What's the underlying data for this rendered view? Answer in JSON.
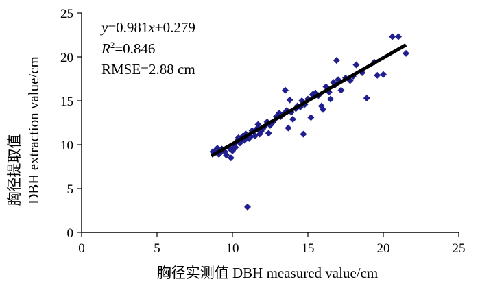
{
  "chart_data": {
    "type": "scatter",
    "xlabel": "胸径实测值 DBH measured value/cm",
    "ylabel_zh": "胸径提取值",
    "ylabel_en": "DBH extraction value/cm",
    "xlim": [
      0,
      25
    ],
    "ylim": [
      0,
      25
    ],
    "xticks": [
      0,
      5,
      10,
      15,
      20,
      25
    ],
    "yticks": [
      0,
      5,
      10,
      15,
      20,
      25
    ],
    "x_tick_labels": [
      "0",
      "5",
      "10",
      "15",
      "20",
      "25"
    ],
    "y_tick_labels": [
      "0",
      "5",
      "10",
      "15",
      "20",
      "25"
    ],
    "grid": false,
    "marker_color": "#1f1f8f",
    "fit_line_color": "#000000",
    "annotations": {
      "equation_var_y": "y",
      "equation_mid": "=0.981",
      "equation_var_x": "x",
      "equation_tail": "+0.279",
      "r2_var": "R",
      "r2_sup": "2",
      "r2_value": "=0.846",
      "rmse": "RMSE=2.88 cm"
    },
    "fit": {
      "slope": 0.981,
      "intercept": 0.279,
      "x_range": [
        8.6,
        21.5
      ]
    },
    "points": [
      [
        8.7,
        9.2
      ],
      [
        8.9,
        9.4
      ],
      [
        9.0,
        9.6
      ],
      [
        9.1,
        8.9
      ],
      [
        9.2,
        9.1
      ],
      [
        9.3,
        9.5
      ],
      [
        9.5,
        9.2
      ],
      [
        9.6,
        8.8
      ],
      [
        9.8,
        9.6
      ],
      [
        9.9,
        8.5
      ],
      [
        10.0,
        9.3
      ],
      [
        10.1,
        10.0
      ],
      [
        10.2,
        9.7
      ],
      [
        10.3,
        10.4
      ],
      [
        10.4,
        10.8
      ],
      [
        10.5,
        10.2
      ],
      [
        10.6,
        10.6
      ],
      [
        10.7,
        11.0
      ],
      [
        10.8,
        10.5
      ],
      [
        10.9,
        11.2
      ],
      [
        11.0,
        2.9
      ],
      [
        11.1,
        10.7
      ],
      [
        11.2,
        10.9
      ],
      [
        11.3,
        11.6
      ],
      [
        11.5,
        11.0
      ],
      [
        11.6,
        11.8
      ],
      [
        11.7,
        12.3
      ],
      [
        11.8,
        11.2
      ],
      [
        11.9,
        11.5
      ],
      [
        12.0,
        11.8
      ],
      [
        12.1,
        12.0
      ],
      [
        12.3,
        12.6
      ],
      [
        12.4,
        11.3
      ],
      [
        12.5,
        12.2
      ],
      [
        12.7,
        12.6
      ],
      [
        12.9,
        13.2
      ],
      [
        13.1,
        13.6
      ],
      [
        13.2,
        13.2
      ],
      [
        13.4,
        13.5
      ],
      [
        13.5,
        16.2
      ],
      [
        13.6,
        13.9
      ],
      [
        13.7,
        11.9
      ],
      [
        13.8,
        15.1
      ],
      [
        13.9,
        13.7
      ],
      [
        14.0,
        12.9
      ],
      [
        14.2,
        14.1
      ],
      [
        14.3,
        14.4
      ],
      [
        14.5,
        14.3
      ],
      [
        14.6,
        15.0
      ],
      [
        14.7,
        11.2
      ],
      [
        14.8,
        14.6
      ],
      [
        15.0,
        15.2
      ],
      [
        15.2,
        13.1
      ],
      [
        15.3,
        15.7
      ],
      [
        15.5,
        15.9
      ],
      [
        15.7,
        15.6
      ],
      [
        15.9,
        14.4
      ],
      [
        16.0,
        14.0
      ],
      [
        16.2,
        16.6
      ],
      [
        16.4,
        16.0
      ],
      [
        16.5,
        15.2
      ],
      [
        16.7,
        17.1
      ],
      [
        16.8,
        16.8
      ],
      [
        16.9,
        19.6
      ],
      [
        17.0,
        17.4
      ],
      [
        17.2,
        16.2
      ],
      [
        17.5,
        17.6
      ],
      [
        17.8,
        17.3
      ],
      [
        18.0,
        17.8
      ],
      [
        18.2,
        19.1
      ],
      [
        18.6,
        18.2
      ],
      [
        18.9,
        15.3
      ],
      [
        19.4,
        19.4
      ],
      [
        19.6,
        17.9
      ],
      [
        20.0,
        18.0
      ],
      [
        20.6,
        22.3
      ],
      [
        21.0,
        22.3
      ],
      [
        21.5,
        20.4
      ]
    ]
  }
}
